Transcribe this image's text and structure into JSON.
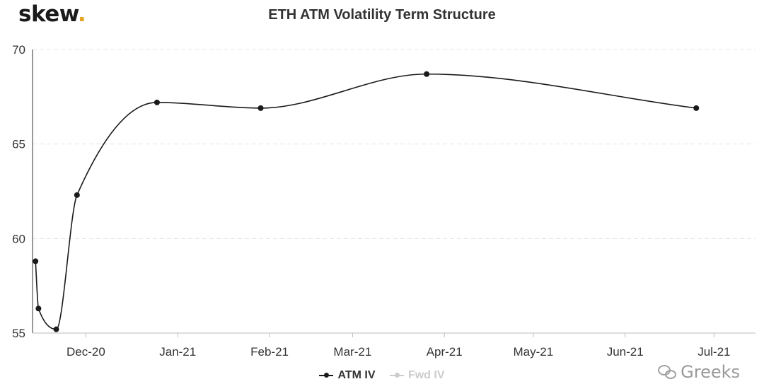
{
  "brand": {
    "name": "skew",
    "dot": ".",
    "dot_color": "#e3a31f"
  },
  "chart_data": {
    "type": "line",
    "title": "ETH ATM Volatility Term Structure",
    "xlabel": "",
    "ylabel": "",
    "ylim": [
      55,
      70
    ],
    "yticks": [
      55,
      60,
      65,
      70
    ],
    "x_axis_type": "date",
    "xlim": [
      "2020-11-13",
      "2021-07-15"
    ],
    "xticks": [
      {
        "date": "2020-12-01",
        "label": "Dec-20"
      },
      {
        "date": "2021-01-01",
        "label": "Jan-21"
      },
      {
        "date": "2021-02-01",
        "label": "Feb-21"
      },
      {
        "date": "2021-03-01",
        "label": "Mar-21"
      },
      {
        "date": "2021-04-01",
        "label": "Apr-21"
      },
      {
        "date": "2021-05-01",
        "label": "May-21"
      },
      {
        "date": "2021-06-01",
        "label": "Jun-21"
      },
      {
        "date": "2021-07-01",
        "label": "Jul-21"
      }
    ],
    "grid": "horizontal-dashed",
    "legend_position": "bottom-center",
    "series": [
      {
        "name": "ATM IV",
        "color": "#1a1a1a",
        "visible": true,
        "points": [
          {
            "x": "2020-11-14",
            "y": 58.8
          },
          {
            "x": "2020-11-15",
            "y": 56.3
          },
          {
            "x": "2020-11-21",
            "y": 55.2
          },
          {
            "x": "2020-11-28",
            "y": 62.3
          },
          {
            "x": "2020-12-25",
            "y": 67.2
          },
          {
            "x": "2021-01-29",
            "y": 66.9
          },
          {
            "x": "2021-03-26",
            "y": 68.7
          },
          {
            "x": "2021-06-25",
            "y": 66.9
          }
        ]
      },
      {
        "name": "Fwd IV",
        "color": "#cccccc",
        "visible": false,
        "points": []
      }
    ]
  },
  "watermark": {
    "text": "Greeks"
  }
}
